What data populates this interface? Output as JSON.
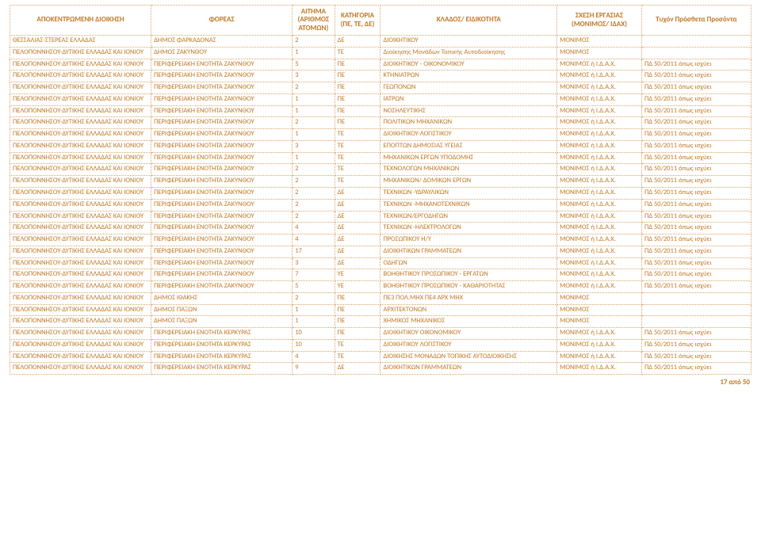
{
  "colors": {
    "header_text": "#bf7826",
    "border": "#d9a469",
    "bg": "#ffffff"
  },
  "columns": [
    "ΑΠΟΚΕΝΤΡΩΜΕΝΗ ΔΙΟΙΚΗΣΗ",
    "ΦΟΡΕΑΣ",
    "ΑΙΤΗΜΑ (ΑΡΙΘΜΟΣ ΑΤΟΜΩΝ)",
    "ΚΑΤΗΓΟΡΙΑ (ΠΕ, ΤΕ, ΔΕ)",
    "ΚΛΑΔΟΣ/ ΕΙΔΙΚΟΤΗΤΑ",
    "ΣΧΕΣΗ ΕΡΓΑΣΙΑΣ (ΜΟΝΙΜΟΣ/ ΙΔΑΧ)",
    "Τυχόν Πρόσθετα Προσόντα"
  ],
  "rows": [
    [
      "ΘΕΣΣΑΛΙΑΣ-ΣΤΕΡΕΑΣ ΕΛΛΑΔΑΣ",
      "ΔΗΜΟΣ ΦΑΡΚΑΔΟΝΑΣ",
      "2",
      "ΔΕ",
      "ΔΙΟΙΚΗΤΙΚΟΥ",
      "ΜΟΝΙΜΟΣ",
      ""
    ],
    [
      "ΠΕΛΟΠΟΝΝΗΣΟΥ-ΔΥΤΙΚΗΣ ΕΛΛΑΔΑΣ ΚΑΙ ΙΟΝΙΟΥ",
      "ΔΗΜΟΣ ΖΑΚΥΝΘΟΥ",
      "1",
      "ΤΕ",
      "Διοίκησης Μονάδων Τοπικής Αυτοδιοίκησης",
      "ΜΟΝΙΜΟΣ",
      ""
    ],
    [
      "ΠΕΛΟΠΟΝΝΗΣΟΥ-ΔΥΤΙΚΗΣ ΕΛΛΑΔΑΣ ΚΑΙ ΙΟΝΙΟΥ",
      "ΠΕΡΙΦΕΡΕΙΑΚΗ ΕΝΟΤΗΤΑ ΖΑΚΥΝΘΟΥ",
      "5",
      "ΠΕ",
      "ΔΙΟΙΚΗΤΙΚΟΥ - ΟΙΚΟΝΟΜΙΚΟΥ",
      "ΜΟΝΙΜΟΣ ή Ι.Δ.Α.Χ.",
      "ΠΔ 50/2011  όπως ισχύει"
    ],
    [
      "ΠΕΛΟΠΟΝΝΗΣΟΥ-ΔΥΤΙΚΗΣ ΕΛΛΑΔΑΣ ΚΑΙ ΙΟΝΙΟΥ",
      "ΠΕΡΙΦΕΡΕΙΑΚΗ ΕΝΟΤΗΤΑ ΖΑΚΥΝΘΟΥ",
      "3",
      "ΠΕ",
      "ΚΤΗΝΙΑΤΡΩΝ",
      "ΜΟΝΙΜΟΣ ή Ι.Δ.Α.Χ.",
      "ΠΔ 50/2011  όπως ισχύει"
    ],
    [
      "ΠΕΛΟΠΟΝΝΗΣΟΥ-ΔΥΤΙΚΗΣ ΕΛΛΑΔΑΣ ΚΑΙ ΙΟΝΙΟΥ",
      "ΠΕΡΙΦΕΡΕΙΑΚΗ ΕΝΟΤΗΤΑ ΖΑΚΥΝΘΟΥ",
      "2",
      "ΠΕ",
      "ΓΕΩΠΟΝΩΝ",
      "ΜΟΝΙΜΟΣ ή Ι.Δ.Α.Χ.",
      "ΠΔ 50/2011  όπως ισχύει"
    ],
    [
      "ΠΕΛΟΠΟΝΝΗΣΟΥ-ΔΥΤΙΚΗΣ ΕΛΛΑΔΑΣ ΚΑΙ ΙΟΝΙΟΥ",
      "ΠΕΡΙΦΕΡΕΙΑΚΗ ΕΝΟΤΗΤΑ ΖΑΚΥΝΘΟΥ",
      "1",
      "ΠΕ",
      "ΙΑΤΡΩΝ",
      "ΜΟΝΙΜΟΣ ή Ι.Δ.Α.Χ.",
      "ΠΔ 50/2011  όπως ισχύει"
    ],
    [
      "ΠΕΛΟΠΟΝΝΗΣΟΥ-ΔΥΤΙΚΗΣ ΕΛΛΑΔΑΣ ΚΑΙ ΙΟΝΙΟΥ",
      "ΠΕΡΙΦΕΡΕΙΑΚΗ ΕΝΟΤΗΤΑ ΖΑΚΥΝΘΟΥ",
      "1",
      "ΠΕ",
      "ΝΟΣΗΛΕΥΤΙΚΗΣ",
      "ΜΟΝΙΜΟΣ ή Ι.Δ.Α.Χ.",
      "ΠΔ 50/2011  όπως ισχύει"
    ],
    [
      "ΠΕΛΟΠΟΝΝΗΣΟΥ-ΔΥΤΙΚΗΣ ΕΛΛΑΔΑΣ ΚΑΙ ΙΟΝΙΟΥ",
      "ΠΕΡΙΦΕΡΕΙΑΚΗ ΕΝΟΤΗΤΑ ΖΑΚΥΝΘΟΥ",
      "2",
      "ΠΕ",
      "ΠΟΛΙΤΙΚΩΝ ΜΗΧΑΝΙΚΩΝ",
      "ΜΟΝΙΜΟΣ ή Ι.Δ.Α.Χ.",
      "ΠΔ 50/2011  όπως ισχύει"
    ],
    [
      "ΠΕΛΟΠΟΝΝΗΣΟΥ-ΔΥΤΙΚΗΣ ΕΛΛΑΔΑΣ ΚΑΙ ΙΟΝΙΟΥ",
      "ΠΕΡΙΦΕΡΕΙΑΚΗ ΕΝΟΤΗΤΑ ΖΑΚΥΝΘΟΥ",
      "1",
      "ΤΕ",
      "ΔΙΟΙΚΗΤΙΚΟΥ-ΛΟΓΙΣΤΙΚΟΥ",
      "ΜΟΝΙΜΟΣ ή Ι.Δ.Α.Χ.",
      "ΠΔ 50/2011  όπως ισχύει"
    ],
    [
      "ΠΕΛΟΠΟΝΝΗΣΟΥ-ΔΥΤΙΚΗΣ ΕΛΛΑΔΑΣ ΚΑΙ ΙΟΝΙΟΥ",
      "ΠΕΡΙΦΕΡΕΙΑΚΗ ΕΝΟΤΗΤΑ ΖΑΚΥΝΘΟΥ",
      "3",
      "ΤΕ",
      "ΕΠΟΠΤΩΝ ΔΗΜΟΣΙΑΣ ΥΓΕΙΑΣ",
      "ΜΟΝΙΜΟΣ ή Ι.Δ.Α.Χ.",
      "ΠΔ 50/2011  όπως ισχύει"
    ],
    [
      "ΠΕΛΟΠΟΝΝΗΣΟΥ-ΔΥΤΙΚΗΣ ΕΛΛΑΔΑΣ ΚΑΙ ΙΟΝΙΟΥ",
      "ΠΕΡΙΦΕΡΕΙΑΚΗ ΕΝΟΤΗΤΑ ΖΑΚΥΝΘΟΥ",
      "1",
      "ΤΕ",
      "ΜΗΧΑΝΙΚΩΝ ΕΡΓΩΝ ΥΠΟΔΟΜΗΣ",
      "ΜΟΝΙΜΟΣ ή Ι.Δ.Α.Χ.",
      "ΠΔ 50/2011  όπως ισχύει"
    ],
    [
      "ΠΕΛΟΠΟΝΝΗΣΟΥ-ΔΥΤΙΚΗΣ ΕΛΛΑΔΑΣ ΚΑΙ ΙΟΝΙΟΥ",
      "ΠΕΡΙΦΕΡΕΙΑΚΗ ΕΝΟΤΗΤΑ ΖΑΚΥΝΘΟΥ",
      "2",
      "ΤΕ",
      "ΤΕΧΝΟΛΟΓΩΝ ΜΗΧΑΝΙΚΩΝ",
      "ΜΟΝΙΜΟΣ ή Ι.Δ.Α.Χ.",
      "ΠΔ 50/2011  όπως ισχύει"
    ],
    [
      "ΠΕΛΟΠΟΝΝΗΣΟΥ-ΔΥΤΙΚΗΣ ΕΛΛΑΔΑΣ ΚΑΙ ΙΟΝΙΟΥ",
      "ΠΕΡΙΦΕΡΕΙΑΚΗ ΕΝΟΤΗΤΑ ΖΑΚΥΝΘΟΥ",
      "2",
      "ΤΕ",
      "ΜΗΧΑΝΙΚΩΝ/ ΔΟΜΙΚΩΝ ΕΡΓΩΝ",
      "ΜΟΝΙΜΟΣ ή Ι.Δ.Α.Χ.",
      "ΠΔ 50/2011  όπως ισχύει"
    ],
    [
      "ΠΕΛΟΠΟΝΝΗΣΟΥ-ΔΥΤΙΚΗΣ ΕΛΛΑΔΑΣ ΚΑΙ ΙΟΝΙΟΥ",
      "ΠΕΡΙΦΕΡΕΙΑΚΗ ΕΝΟΤΗΤΑ ΖΑΚΥΝΘΟΥ",
      "2",
      "ΔΕ",
      "ΤΕΧΝΙΚΩΝ -ΥΔΡΑΥΛΙΚΩΝ",
      "ΜΟΝΙΜΟΣ ή Ι.Δ.Α.Χ.",
      "ΠΔ 50/2011  όπως ισχύει"
    ],
    [
      "ΠΕΛΟΠΟΝΝΗΣΟΥ-ΔΥΤΙΚΗΣ ΕΛΛΑΔΑΣ ΚΑΙ ΙΟΝΙΟΥ",
      "ΠΕΡΙΦΕΡΕΙΑΚΗ ΕΝΟΤΗΤΑ ΖΑΚΥΝΘΟΥ",
      "2",
      "ΔΕ",
      "ΤΕΧΝΙΚΩΝ -ΜΗΧΑΝΟΤΕΧΝΙΚΩΝ",
      "ΜΟΝΙΜΟΣ ή Ι.Δ.Α.Χ.",
      "ΠΔ 50/2011  όπως ισχύει"
    ],
    [
      "ΠΕΛΟΠΟΝΝΗΣΟΥ-ΔΥΤΙΚΗΣ ΕΛΛΑΔΑΣ ΚΑΙ ΙΟΝΙΟΥ",
      "ΠΕΡΙΦΕΡΕΙΑΚΗ ΕΝΟΤΗΤΑ ΖΑΚΥΝΘΟΥ",
      "2",
      "ΔΕ",
      "ΤΕΧΝΙΚΩΝ/ΕΡΓΟΔΗΓΩΝ",
      "ΜΟΝΙΜΟΣ ή Ι.Δ.Α.Χ.",
      "ΠΔ 50/2011  όπως ισχύει"
    ],
    [
      "ΠΕΛΟΠΟΝΝΗΣΟΥ-ΔΥΤΙΚΗΣ ΕΛΛΑΔΑΣ ΚΑΙ ΙΟΝΙΟΥ",
      "ΠΕΡΙΦΕΡΕΙΑΚΗ ΕΝΟΤΗΤΑ ΖΑΚΥΝΘΟΥ",
      "4",
      "ΔΕ",
      "ΤΕΧΝΙΚΩΝ -ΗΛΕΚΤΡΟΛΟΓΩΝ",
      "ΜΟΝΙΜΟΣ ή Ι.Δ.Α.Χ.",
      "ΠΔ 50/2011  όπως ισχύει"
    ],
    [
      "ΠΕΛΟΠΟΝΝΗΣΟΥ-ΔΥΤΙΚΗΣ ΕΛΛΑΔΑΣ ΚΑΙ ΙΟΝΙΟΥ",
      "ΠΕΡΙΦΕΡΕΙΑΚΗ ΕΝΟΤΗΤΑ ΖΑΚΥΝΘΟΥ",
      "4",
      "ΔΕ",
      "ΠΡΟΣΩΠΙΚΟΥ Η/Υ",
      "ΜΟΝΙΜΟΣ ή Ι.Δ.Α.Χ.",
      "ΠΔ 50/2011  όπως ισχύει"
    ],
    [
      "ΠΕΛΟΠΟΝΝΗΣΟΥ-ΔΥΤΙΚΗΣ ΕΛΛΑΔΑΣ ΚΑΙ ΙΟΝΙΟΥ",
      "ΠΕΡΙΦΕΡΕΙΑΚΗ ΕΝΟΤΗΤΑ ΖΑΚΥΝΘΟΥ",
      "17",
      "ΔΕ",
      "ΔΙΟΙΚΗΤΙΚΩΝ ΓΡΑΜΜΑΤΕΩΝ",
      "ΜΟΝΙΜΟΣ ή Ι.Δ.Α.Χ.",
      "ΠΔ 50/2011  όπως ισχύει"
    ],
    [
      "ΠΕΛΟΠΟΝΝΗΣΟΥ-ΔΥΤΙΚΗΣ ΕΛΛΑΔΑΣ ΚΑΙ ΙΟΝΙΟΥ",
      "ΠΕΡΙΦΕΡΕΙΑΚΗ ΕΝΟΤΗΤΑ ΖΑΚΥΝΘΟΥ",
      "3",
      "ΔΕ",
      "ΟΔΗΓΩΝ",
      "ΜΟΝΙΜΟΣ ή Ι.Δ.Α.Χ.",
      "ΠΔ 50/2011  όπως ισχύει"
    ],
    [
      "ΠΕΛΟΠΟΝΝΗΣΟΥ-ΔΥΤΙΚΗΣ ΕΛΛΑΔΑΣ ΚΑΙ ΙΟΝΙΟΥ",
      "ΠΕΡΙΦΕΡΕΙΑΚΗ ΕΝΟΤΗΤΑ ΖΑΚΥΝΘΟΥ",
      "7",
      "ΥΕ",
      "ΒΟΗΘΗΤΙΚΟΥ ΠΡΟΣΩΠΙΚΟΥ - ΕΡΓΑΤΩΝ",
      "ΜΟΝΙΜΟΣ ή Ι.Δ.Α.Χ.",
      "ΠΔ 50/2011  όπως ισχύει"
    ],
    [
      "ΠΕΛΟΠΟΝΝΗΣΟΥ-ΔΥΤΙΚΗΣ ΕΛΛΑΔΑΣ ΚΑΙ ΙΟΝΙΟΥ",
      "ΠΕΡΙΦΕΡΕΙΑΚΗ ΕΝΟΤΗΤΑ ΖΑΚΥΝΘΟΥ",
      "5",
      "ΥΕ",
      "ΒΟΗΘΗΤΙΚΟΥ ΠΡΟΣΩΠΙΚΟΥ - ΚΑΘΑΡΙΟΤΗΤΑΣ",
      "ΜΟΝΙΜΟΣ ή Ι.Δ.Α.Χ.",
      "ΠΔ 50/2011  όπως ισχύει"
    ],
    [
      "ΠΕΛΟΠΟΝΝΗΣΟΥ-ΔΥΤΙΚΗΣ ΕΛΛΑΔΑΣ ΚΑΙ ΙΟΝΙΟΥ",
      "ΔΗΜΟΣ ΙΘΑΚΗΣ",
      "2",
      "ΠΕ",
      "ΠΕ3 ΠΟΛ.ΜΗΧ ΠΕ4 ΑΡΧ ΜΗΧ",
      "ΜΟΝΙΜΟΣ",
      ""
    ],
    [
      "ΠΕΛΟΠΟΝΝΗΣΟΥ-ΔΥΤΙΚΗΣ ΕΛΛΑΔΑΣ ΚΑΙ ΙΟΝΙΟΥ",
      "ΔΗΜΟΣ ΠΑΞΩΝ",
      "1",
      "ΠΕ",
      "ΑΡΧΙΤΕΚΤΟΝΩΝ",
      "ΜΟΝΙΜΟΣ",
      ""
    ],
    [
      "ΠΕΛΟΠΟΝΝΗΣΟΥ-ΔΥΤΙΚΗΣ ΕΛΛΑΔΑΣ ΚΑΙ ΙΟΝΙΟΥ",
      "ΔΗΜΟΣ ΠΑΞΩΝ",
      "1",
      "ΠΕ",
      "ΧΗΜΙΚΟΣ ΜΗΧΑΝΙΚΟΣ",
      "ΜΟΝΙΜΟΣ",
      ""
    ],
    [
      "ΠΕΛΟΠΟΝΝΗΣΟΥ-ΔΥΤΙΚΗΣ ΕΛΛΑΔΑΣ ΚΑΙ ΙΟΝΙΟΥ",
      "ΠΕΡΙΦΕΡΕΙΑΚΗ ΕΝΟΤΗΤΑ ΚΕΡΚΥΡΑΣ",
      "10",
      "ΠΕ",
      "ΔΙΟΙΚΗΤΙΚΟΥ ΟΙΚΟΝΟΜΙΚΟΥ",
      "ΜΟΝΙΜΟΣ ή Ι.Δ.Α.Χ.",
      "ΠΔ 50/2011  όπως ισχύει"
    ],
    [
      "ΠΕΛΟΠΟΝΝΗΣΟΥ-ΔΥΤΙΚΗΣ ΕΛΛΑΔΑΣ ΚΑΙ ΙΟΝΙΟΥ",
      "ΠΕΡΙΦΕΡΕΙΑΚΗ ΕΝΟΤΗΤΑ ΚΕΡΚΥΡΑΣ",
      "10",
      "ΤΕ",
      "ΔΙΟΙΚΗΤΙΚΟΥ  ΛΟΓΙΣΤΙΚΟΥ",
      "ΜΟΝΙΜΟΣ ή Ι.Δ.Α.Χ.",
      "ΠΔ 50/2011  όπως ισχύει"
    ],
    [
      "ΠΕΛΟΠΟΝΝΗΣΟΥ-ΔΥΤΙΚΗΣ ΕΛΛΑΔΑΣ ΚΑΙ ΙΟΝΙΟΥ",
      "ΠΕΡΙΦΕΡΕΙΑΚΗ ΕΝΟΤΗΤΑ ΚΕΡΚΥΡΑΣ",
      "4",
      "ΤΕ",
      "ΔΙΟΙΚΗΣΗΣ ΜΟΝΑΔΩΝ ΤΟΠΙΚΗΣ ΑΥΤΟΔΙΟΙΚΗΣΗΣ",
      "ΜΟΝΙΜΟΣ ή Ι.Δ.Α.Χ.",
      "ΠΔ 50/2011  όπως ισχύει"
    ],
    [
      "ΠΕΛΟΠΟΝΝΗΣΟΥ-ΔΥΤΙΚΗΣ ΕΛΛΑΔΑΣ ΚΑΙ ΙΟΝΙΟΥ",
      "ΠΕΡΙΦΕΡΕΙΑΚΗ ΕΝΟΤΗΤΑ ΚΕΡΚΥΡΑΣ",
      "9",
      "ΔΕ",
      "ΔΙΟΙΚΗΤΙΚΩΝ ΓΡΑΜΜΑΤΕΩΝ",
      "ΜΟΝΙΜΟΣ ή Ι.Δ.Α.Χ.",
      "ΠΔ 50/2011  όπως ισχύει"
    ]
  ],
  "footer": "17 από 50"
}
